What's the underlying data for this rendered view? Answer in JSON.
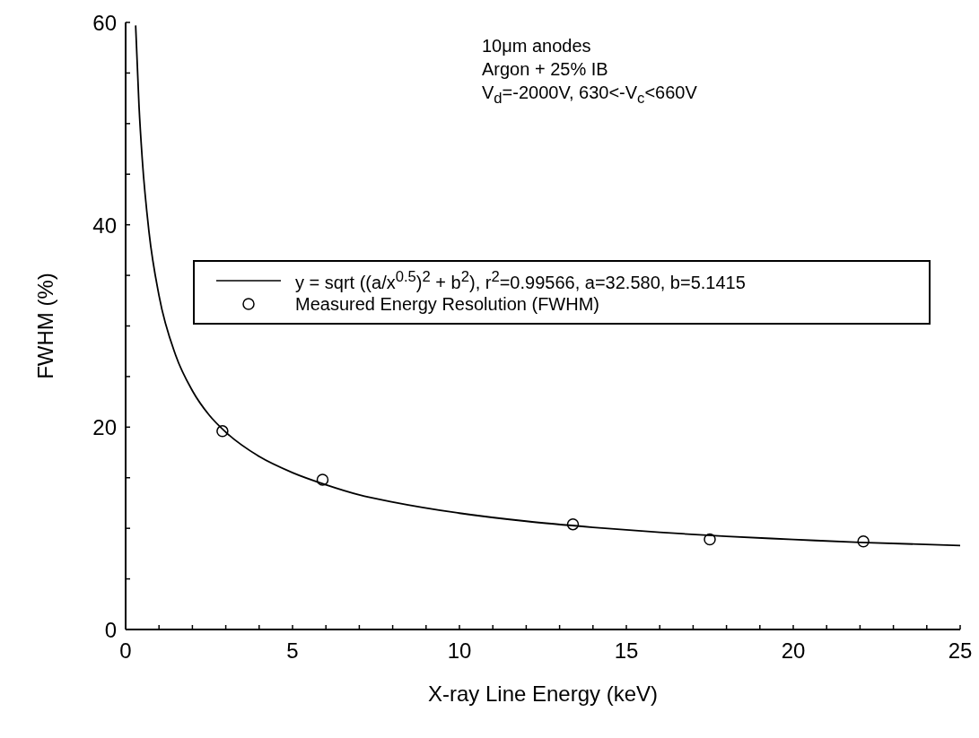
{
  "chart_data": {
    "type": "scatter",
    "xlabel": "X-ray Line Energy (keV)",
    "ylabel": "FWHM (%)",
    "xlim": [
      0,
      25
    ],
    "ylim": [
      0,
      60
    ],
    "xticks": [
      0,
      {
        "value": 1,
        "label": null
      },
      {
        "value": 2,
        "label": null
      },
      {
        "value": 3,
        "label": null
      },
      {
        "value": 4,
        "label": null
      },
      5,
      {
        "value": 6,
        "label": null
      },
      {
        "value": 7,
        "label": null
      },
      {
        "value": 8,
        "label": null
      },
      {
        "value": 9,
        "label": null
      },
      10,
      {
        "value": 11,
        "label": null
      },
      {
        "value": 12,
        "label": null
      },
      {
        "value": 13,
        "label": null
      },
      {
        "value": 14,
        "label": null
      },
      15,
      {
        "value": 16,
        "label": null
      },
      {
        "value": 17,
        "label": null
      },
      {
        "value": 18,
        "label": null
      },
      {
        "value": 19,
        "label": null
      },
      20,
      {
        "value": 21,
        "label": null
      },
      {
        "value": 22,
        "label": null
      },
      {
        "value": 23,
        "label": null
      },
      {
        "value": 24,
        "label": null
      },
      25
    ],
    "yticks": [
      0,
      {
        "value": 5,
        "label": null
      },
      {
        "value": 10,
        "label": null
      },
      {
        "value": 15,
        "label": null
      },
      20,
      {
        "value": 25,
        "label": null
      },
      {
        "value": 30,
        "label": null
      },
      {
        "value": 35,
        "label": null
      },
      40,
      {
        "value": 45,
        "label": null
      },
      {
        "value": 50,
        "label": null
      },
      {
        "value": 55,
        "label": null
      },
      60
    ],
    "legend": "center",
    "series": [
      {
        "type": "line",
        "name": "y = sqrt ((a/x$^{0.5}$)$^{2}$ + b$^{2}$), r$^{2}$=0.99566, a=32.580, b=5.1415",
        "color": "#000000",
        "marker": "none",
        "x": [
          0.3,
          0.4,
          0.5,
          0.7,
          1,
          1.5,
          2,
          2.5,
          3,
          4,
          5,
          6,
          7,
          8,
          10,
          12,
          14,
          16,
          18,
          20,
          22,
          25
        ],
        "values": [
          59.7,
          51.8,
          46.4,
          39.3,
          33.0,
          27.1,
          23.6,
          21.2,
          19.5,
          17.1,
          15.5,
          14.3,
          13.3,
          12.6,
          11.5,
          10.7,
          10.1,
          9.6,
          9.2,
          8.9,
          8.6,
          8.3
        ]
      },
      {
        "name": "Measured Energy Resolution (FWHM)",
        "color": "#000000",
        "marker": "circle",
        "x": [
          2.9,
          5.9,
          13.4,
          17.5,
          22.1
        ],
        "values": [
          19.6,
          14.8,
          10.4,
          8.9,
          8.7
        ]
      }
    ],
    "annotations": [
      "10μm anodes",
      "Argon + 25% IB",
      "V$_{d}$=-2000V, 630<-V$_{c}$<660V"
    ]
  }
}
